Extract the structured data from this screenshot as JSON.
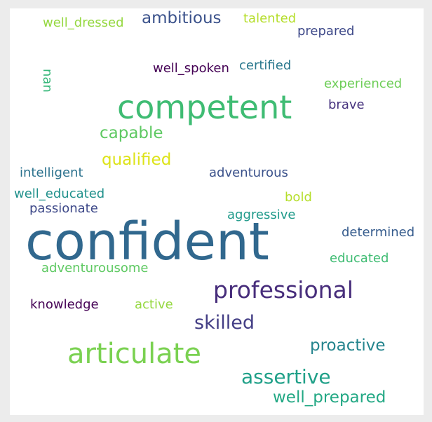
{
  "words": [
    {
      "text": "confident",
      "color": "#31688e"
    },
    {
      "text": "competent",
      "color": "#3fbc73"
    },
    {
      "text": "articulate",
      "color": "#7ad151"
    },
    {
      "text": "professional",
      "color": "#472d7b"
    },
    {
      "text": "skilled",
      "color": "#433e85"
    },
    {
      "text": "assertive",
      "color": "#1fa088"
    },
    {
      "text": "proactive",
      "color": "#25858e"
    },
    {
      "text": "well_prepared",
      "color": "#22a884"
    },
    {
      "text": "ambitious",
      "color": "#3b528b"
    },
    {
      "text": "qualified",
      "color": "#dde318"
    },
    {
      "text": "capable",
      "color": "#5ec962"
    },
    {
      "text": "well_dressed",
      "color": "#95d840"
    },
    {
      "text": "talented",
      "color": "#b5de2b"
    },
    {
      "text": "prepared",
      "color": "#3e4989"
    },
    {
      "text": "well_spoken",
      "color": "#440154"
    },
    {
      "text": "certified",
      "color": "#2a788e"
    },
    {
      "text": "nan",
      "color": "#35b779"
    },
    {
      "text": "experienced",
      "color": "#6ece58"
    },
    {
      "text": "brave",
      "color": "#46327e"
    },
    {
      "text": "intelligent",
      "color": "#2c728e"
    },
    {
      "text": "adventurous",
      "color": "#3b528b"
    },
    {
      "text": "well_educated",
      "color": "#21918c"
    },
    {
      "text": "bold",
      "color": "#b5de2b"
    },
    {
      "text": "passionate",
      "color": "#3e4989"
    },
    {
      "text": "aggressive",
      "color": "#1f9a8a"
    },
    {
      "text": "determined",
      "color": "#365c8d"
    },
    {
      "text": "adventurousome",
      "color": "#5ec962"
    },
    {
      "text": "educated",
      "color": "#3fbc73"
    },
    {
      "text": "knowledge",
      "color": "#440154"
    },
    {
      "text": "active",
      "color": "#95d840"
    }
  ]
}
